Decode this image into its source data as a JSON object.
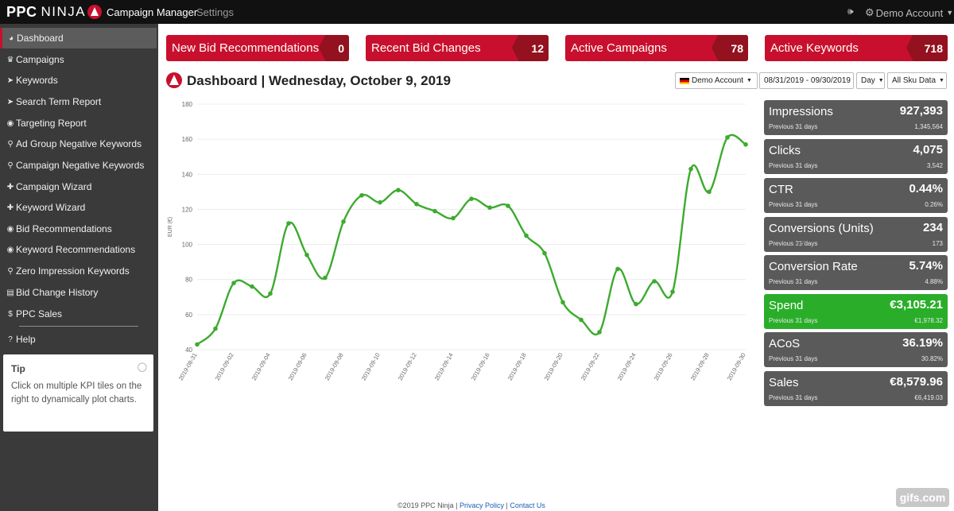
{
  "topbar": {
    "logo_ppc": "PPC",
    "logo_ninja": "NINJA",
    "nav": {
      "campaign_manager": "Campaign Manager",
      "settings": "Settings"
    },
    "account_label": "Demo Account"
  },
  "sidebar": {
    "items": [
      {
        "label": "Dashboard",
        "icon": "dashboard-icon",
        "active": true
      },
      {
        "label": "Campaigns",
        "icon": "trophy-icon"
      },
      {
        "label": "Keywords",
        "icon": "tags-icon"
      },
      {
        "label": "Search Term Report",
        "icon": "tags-icon"
      },
      {
        "label": "Targeting Report",
        "icon": "target-icon"
      },
      {
        "label": "Ad Group Negative Keywords",
        "icon": "search-icon"
      },
      {
        "label": "Campaign Negative Keywords",
        "icon": "search-icon"
      },
      {
        "label": "Campaign Wizard",
        "icon": "plus-icon"
      },
      {
        "label": "Keyword Wizard",
        "icon": "plus-icon"
      },
      {
        "label": "Bid Recommendations",
        "icon": "target-icon"
      },
      {
        "label": "Keyword Recommendations",
        "icon": "target-icon"
      },
      {
        "label": "Zero Impression Keywords",
        "icon": "search-icon"
      },
      {
        "label": "Bid Change History",
        "icon": "book-icon"
      },
      {
        "label": "PPC Sales",
        "icon": "dollar-icon"
      },
      {
        "label": "Help",
        "icon": "question-icon"
      }
    ],
    "tip": {
      "title": "Tip",
      "body": "Click on multiple KPI tiles on the right to dynamically plot charts."
    }
  },
  "summary_cards": [
    {
      "label": "New Bid Recommendations",
      "count": "0"
    },
    {
      "label": "Recent Bid Changes",
      "count": "12"
    },
    {
      "label": "Active Campaigns",
      "count": "78"
    },
    {
      "label": "Active Keywords",
      "count": "718"
    }
  ],
  "dashboard": {
    "title": "Dashboard | Wednesday, October 9, 2019"
  },
  "filters": {
    "account": "Demo Account",
    "date_range": "08/31/2019 - 09/30/2019",
    "granularity": "Day",
    "sku": "All Sku Data"
  },
  "kpis": [
    {
      "name": "Impressions",
      "value": "927,393",
      "prev_label": "Previous 31 days",
      "prev_value": "1,345,564",
      "active": false
    },
    {
      "name": "Clicks",
      "value": "4,075",
      "prev_label": "Previous 31 days",
      "prev_value": "3,542",
      "active": false
    },
    {
      "name": "CTR",
      "value": "0.44%",
      "prev_label": "Previous 31 days",
      "prev_value": "0.26%",
      "active": false
    },
    {
      "name": "Conversions (Units)",
      "value": "234",
      "prev_label": "Previous 31 days",
      "prev_value": "173",
      "active": false
    },
    {
      "name": "Conversion Rate",
      "value": "5.74%",
      "prev_label": "Previous 31 days",
      "prev_value": "4.88%",
      "active": false
    },
    {
      "name": "Spend",
      "value": "€3,105.21",
      "prev_label": "Previous 31 days",
      "prev_value": "€1,978.32",
      "active": true
    },
    {
      "name": "ACoS",
      "value": "36.19%",
      "prev_label": "Previous 31 days",
      "prev_value": "30.82%",
      "active": false
    },
    {
      "name": "Sales",
      "value": "€8,579.96",
      "prev_label": "Previous 31 days",
      "prev_value": "€6,419.03",
      "active": false
    }
  ],
  "chart_data": {
    "type": "line",
    "ylabel": "EUR (€)",
    "ylim": [
      40,
      180
    ],
    "yticks": [
      40,
      60,
      80,
      100,
      120,
      140,
      160,
      180
    ],
    "grid": true,
    "line_color": "#3cab2e",
    "x": [
      "2019-08-31",
      "2019-09-01",
      "2019-09-02",
      "2019-09-03",
      "2019-09-04",
      "2019-09-05",
      "2019-09-06",
      "2019-09-07",
      "2019-09-08",
      "2019-09-09",
      "2019-09-10",
      "2019-09-11",
      "2019-09-12",
      "2019-09-13",
      "2019-09-14",
      "2019-09-15",
      "2019-09-16",
      "2019-09-17",
      "2019-09-18",
      "2019-09-19",
      "2019-09-20",
      "2019-09-21",
      "2019-09-22",
      "2019-09-23",
      "2019-09-24",
      "2019-09-25",
      "2019-09-26",
      "2019-09-27",
      "2019-09-28",
      "2019-09-29",
      "2019-09-30"
    ],
    "xtick_labels": [
      "2019-08-31",
      "2019-09-02",
      "2019-09-04",
      "2019-09-06",
      "2019-09-08",
      "2019-09-10",
      "2019-09-12",
      "2019-09-14",
      "2019-09-16",
      "2019-09-18",
      "2019-09-20",
      "2019-09-22",
      "2019-09-24",
      "2019-09-26",
      "2019-09-28",
      "2019-09-30"
    ],
    "values": [
      43,
      52,
      78,
      76,
      72,
      112,
      94,
      81,
      113,
      128,
      124,
      131,
      123,
      119,
      115,
      126,
      121,
      122,
      105,
      95,
      67,
      57,
      50,
      86,
      66,
      79,
      73,
      143,
      130,
      161,
      157
    ]
  },
  "footer": {
    "copyright": "©2019 PPC Ninja",
    "sep1": " | ",
    "privacy": "Privacy Policy",
    "sep2": " | ",
    "contact": "Contact Us"
  },
  "watermark": "gifs.com"
}
